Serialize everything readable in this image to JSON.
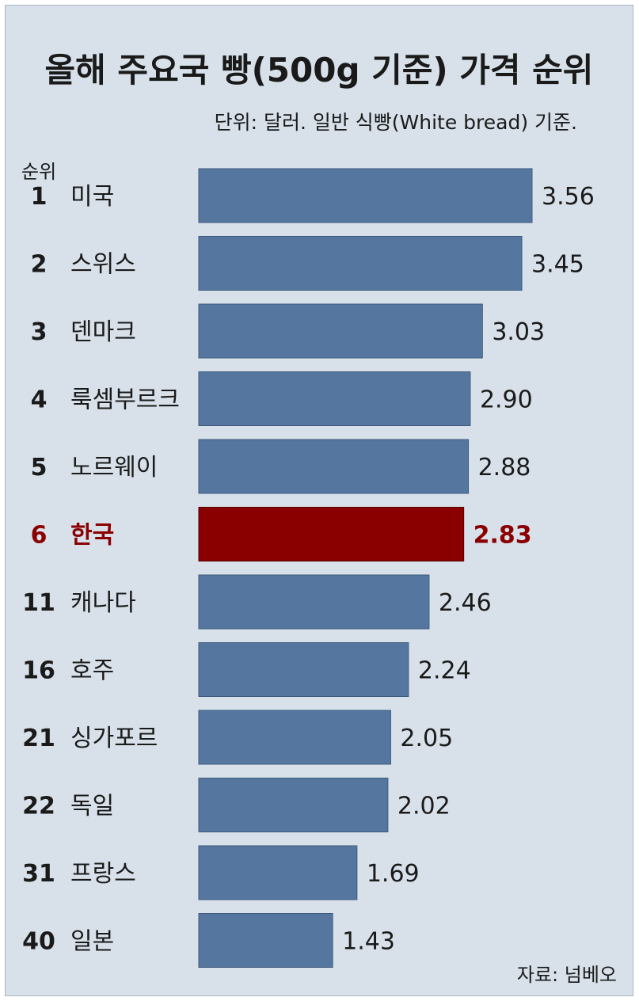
{
  "chart_data": {
    "type": "bar",
    "orientation": "horizontal",
    "title": "올해 주요국 빵(500g 기준) 가격 순위",
    "subtitle": "단위: 달러. 일반 식빵(White bread) 기준.",
    "rank_header": "순위",
    "ranks": [
      "1",
      "2",
      "3",
      "4",
      "5",
      "6",
      "11",
      "16",
      "21",
      "22",
      "31",
      "40"
    ],
    "categories": [
      "미국",
      "스위스",
      "덴마크",
      "룩셈부르크",
      "노르웨이",
      "한국",
      "캐나다",
      "호주",
      "싱가포르",
      "독일",
      "프랑스",
      "일본"
    ],
    "values": [
      3.56,
      3.45,
      3.03,
      2.9,
      2.88,
      2.83,
      2.46,
      2.24,
      2.05,
      2.02,
      1.69,
      1.43
    ],
    "value_labels": [
      "3.56",
      "3.45",
      "3.03",
      "2.90",
      "2.88",
      "2.83",
      "2.46",
      "2.24",
      "2.05",
      "2.02",
      "1.69",
      "1.43"
    ],
    "highlight_index": 5,
    "bar_color": "#55779f",
    "highlight_color": "#8a0000",
    "source": "자료: 넘베오"
  }
}
